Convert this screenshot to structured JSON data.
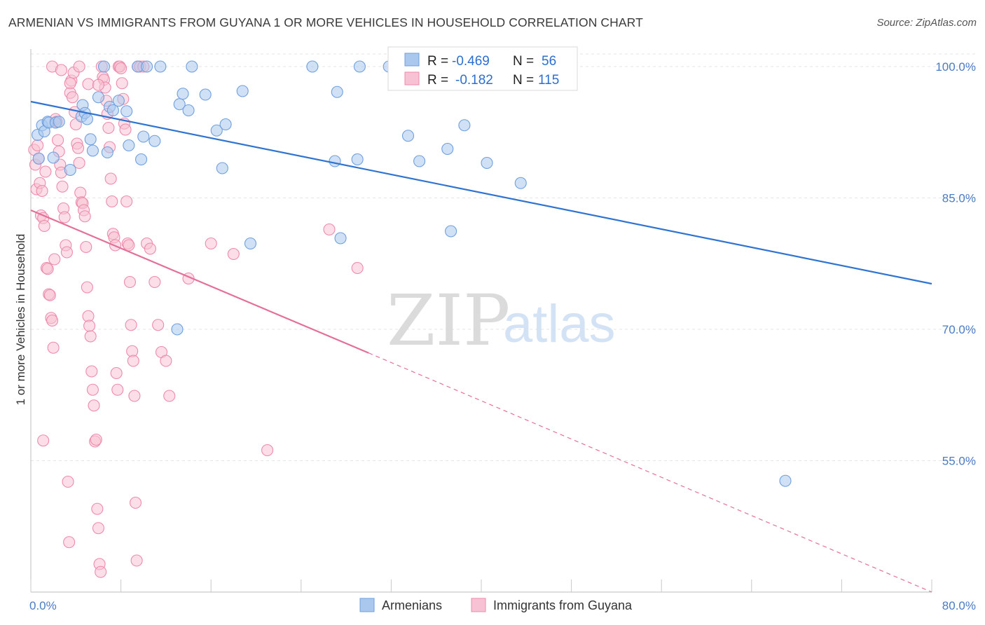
{
  "title": "ARMENIAN VS IMMIGRANTS FROM GUYANA 1 OR MORE VEHICLES IN HOUSEHOLD CORRELATION CHART",
  "source": "Source: ZipAtlas.com",
  "colors": {
    "blue": "#6f9fde",
    "blue_fill": "#aac8ee",
    "blue_line": "#2f74d0",
    "pink": "#ee8aab",
    "pink_fill": "#f7c2d3",
    "pink_line": "#e4709a",
    "grid": "#e4e4e4",
    "tick_text": "#4a7bc4"
  },
  "legend_top": {
    "rows": [
      {
        "r_label": "R =",
        "r_value": "-0.469",
        "n_label": "N =",
        "n_value": "56",
        "series": "Armenians"
      },
      {
        "r_label": "R =",
        "r_value": "-0.182",
        "n_label": "N =",
        "n_value": "115",
        "series": "Immigrants from Guyana"
      }
    ]
  },
  "watermark": {
    "zip": "ZIP",
    "atlas": "atlas"
  },
  "chart_data": {
    "type": "scatter",
    "xlabel": "",
    "ylabel": "1 or more Vehicles in Household",
    "xlim": [
      0,
      80
    ],
    "ylim": [
      40,
      102
    ],
    "x_tick_labels": [
      "0.0%",
      "80.0%"
    ],
    "y_ticks": [
      55,
      70,
      85,
      100
    ],
    "y_tick_labels": [
      "55.0%",
      "70.0%",
      "85.0%",
      "100.0%"
    ],
    "grid": true,
    "legend": "bottom-center",
    "series": [
      {
        "name": "Armenians",
        "trend": {
          "x": [
            0,
            80
          ],
          "y": [
            96.0,
            75.2
          ],
          "dashed_from": null
        },
        "points": [
          [
            0.6,
            92.2
          ],
          [
            0.7,
            89.5
          ],
          [
            1.0,
            93.3
          ],
          [
            1.2,
            92.6
          ],
          [
            1.5,
            93.7
          ],
          [
            1.6,
            93.6
          ],
          [
            2.0,
            89.6
          ],
          [
            2.2,
            93.6
          ],
          [
            2.5,
            93.7
          ],
          [
            3.5,
            88.2
          ],
          [
            4.5,
            94.3
          ],
          [
            4.6,
            95.6
          ],
          [
            4.8,
            94.7
          ],
          [
            5.0,
            94.0
          ],
          [
            5.3,
            91.7
          ],
          [
            5.5,
            90.4
          ],
          [
            6.0,
            96.5
          ],
          [
            6.5,
            100.0
          ],
          [
            6.8,
            90.2
          ],
          [
            7.0,
            95.4
          ],
          [
            7.3,
            95.0
          ],
          [
            7.8,
            96.1
          ],
          [
            8.5,
            94.9
          ],
          [
            8.7,
            91.0
          ],
          [
            9.5,
            100.0
          ],
          [
            9.8,
            89.4
          ],
          [
            10.0,
            92.0
          ],
          [
            10.3,
            100.0
          ],
          [
            11.0,
            91.5
          ],
          [
            11.5,
            100.0
          ],
          [
            13.0,
            70.0
          ],
          [
            13.2,
            95.7
          ],
          [
            13.5,
            96.9
          ],
          [
            14.0,
            95.0
          ],
          [
            14.3,
            100.0
          ],
          [
            15.5,
            96.8
          ],
          [
            16.5,
            92.7
          ],
          [
            17.0,
            88.4
          ],
          [
            17.3,
            93.4
          ],
          [
            18.8,
            97.2
          ],
          [
            19.5,
            79.8
          ],
          [
            25.0,
            100.0
          ],
          [
            27.0,
            89.2
          ],
          [
            27.2,
            97.1
          ],
          [
            27.5,
            80.4
          ],
          [
            29.0,
            89.4
          ],
          [
            29.2,
            100.0
          ],
          [
            31.8,
            100.0
          ],
          [
            33.5,
            92.1
          ],
          [
            34.5,
            89.2
          ],
          [
            37.0,
            90.6
          ],
          [
            37.3,
            81.2
          ],
          [
            38.5,
            93.3
          ],
          [
            40.5,
            89.0
          ],
          [
            43.5,
            86.7
          ],
          [
            67.0,
            52.7
          ]
        ]
      },
      {
        "name": "Immigrants from Guyana",
        "trend": {
          "x": [
            0,
            30,
            80
          ],
          "y": [
            83.6,
            67.3,
            40.0
          ],
          "dashed_from": 30
        },
        "points": [
          [
            0.3,
            90.5
          ],
          [
            0.4,
            88.8
          ],
          [
            0.5,
            86.0
          ],
          [
            0.6,
            91.0
          ],
          [
            0.7,
            89.5
          ],
          [
            0.8,
            86.7
          ],
          [
            0.9,
            83.0
          ],
          [
            1.0,
            85.8
          ],
          [
            1.1,
            82.7
          ],
          [
            1.2,
            81.8
          ],
          [
            1.3,
            88.0
          ],
          [
            1.4,
            77.0
          ],
          [
            1.5,
            76.9
          ],
          [
            1.6,
            74.0
          ],
          [
            1.7,
            73.9
          ],
          [
            1.8,
            71.3
          ],
          [
            1.9,
            71.0
          ],
          [
            2.0,
            67.9
          ],
          [
            2.1,
            78.0
          ],
          [
            2.2,
            94.0
          ],
          [
            2.3,
            93.7
          ],
          [
            2.4,
            91.6
          ],
          [
            2.5,
            90.3
          ],
          [
            2.6,
            88.8
          ],
          [
            2.7,
            87.9
          ],
          [
            2.8,
            86.3
          ],
          [
            2.9,
            83.8
          ],
          [
            3.0,
            82.8
          ],
          [
            3.1,
            79.6
          ],
          [
            3.2,
            78.8
          ],
          [
            3.3,
            52.6
          ],
          [
            3.4,
            45.7
          ],
          [
            3.5,
            97.0
          ],
          [
            3.6,
            98.4
          ],
          [
            3.7,
            96.5
          ],
          [
            3.8,
            99.3
          ],
          [
            3.9,
            94.8
          ],
          [
            4.0,
            93.4
          ],
          [
            4.1,
            91.2
          ],
          [
            4.2,
            90.7
          ],
          [
            4.3,
            89.0
          ],
          [
            4.4,
            85.6
          ],
          [
            4.5,
            84.5
          ],
          [
            4.6,
            84.4
          ],
          [
            4.7,
            83.6
          ],
          [
            4.8,
            82.9
          ],
          [
            4.9,
            79.4
          ],
          [
            5.0,
            74.8
          ],
          [
            5.1,
            71.5
          ],
          [
            5.2,
            70.4
          ],
          [
            5.3,
            69.2
          ],
          [
            5.4,
            65.2
          ],
          [
            5.5,
            63.1
          ],
          [
            5.6,
            61.3
          ],
          [
            5.7,
            57.2
          ],
          [
            5.8,
            57.4
          ],
          [
            5.9,
            49.5
          ],
          [
            6.0,
            47.3
          ],
          [
            6.1,
            43.2
          ],
          [
            6.2,
            42.3
          ],
          [
            6.3,
            100.0
          ],
          [
            6.4,
            98.8
          ],
          [
            6.5,
            98.5
          ],
          [
            6.6,
            97.6
          ],
          [
            6.7,
            96.1
          ],
          [
            6.8,
            94.6
          ],
          [
            6.9,
            93.0
          ],
          [
            7.0,
            90.8
          ],
          [
            7.1,
            87.2
          ],
          [
            7.2,
            84.6
          ],
          [
            7.3,
            80.9
          ],
          [
            7.4,
            80.5
          ],
          [
            7.5,
            79.6
          ],
          [
            7.6,
            65.0
          ],
          [
            7.7,
            63.1
          ],
          [
            7.8,
            100.0
          ],
          [
            7.9,
            100.0
          ],
          [
            8.0,
            99.8
          ],
          [
            8.1,
            98.1
          ],
          [
            8.2,
            96.3
          ],
          [
            8.3,
            93.5
          ],
          [
            8.4,
            92.8
          ],
          [
            8.5,
            84.6
          ],
          [
            8.6,
            79.8
          ],
          [
            8.7,
            79.6
          ],
          [
            8.8,
            75.4
          ],
          [
            8.9,
            70.5
          ],
          [
            9.0,
            67.5
          ],
          [
            9.1,
            66.4
          ],
          [
            9.2,
            62.4
          ],
          [
            9.3,
            50.2
          ],
          [
            9.4,
            43.6
          ],
          [
            9.5,
            100.0
          ],
          [
            9.7,
            100.0
          ],
          [
            10.0,
            100.0
          ],
          [
            10.3,
            79.8
          ],
          [
            10.6,
            79.2
          ],
          [
            11.0,
            75.4
          ],
          [
            11.3,
            70.5
          ],
          [
            11.6,
            67.4
          ],
          [
            12.0,
            66.4
          ],
          [
            12.3,
            62.4
          ],
          [
            14.0,
            75.8
          ],
          [
            16.0,
            79.8
          ],
          [
            18.0,
            78.6
          ],
          [
            21.0,
            56.2
          ],
          [
            26.5,
            81.4
          ],
          [
            29.0,
            77.0
          ],
          [
            1.9,
            100.0
          ],
          [
            2.7,
            99.6
          ],
          [
            3.5,
            98.1
          ],
          [
            4.3,
            100.0
          ],
          [
            5.1,
            98.0
          ],
          [
            6.0,
            97.9
          ],
          [
            1.1,
            57.3
          ]
        ]
      }
    ]
  }
}
